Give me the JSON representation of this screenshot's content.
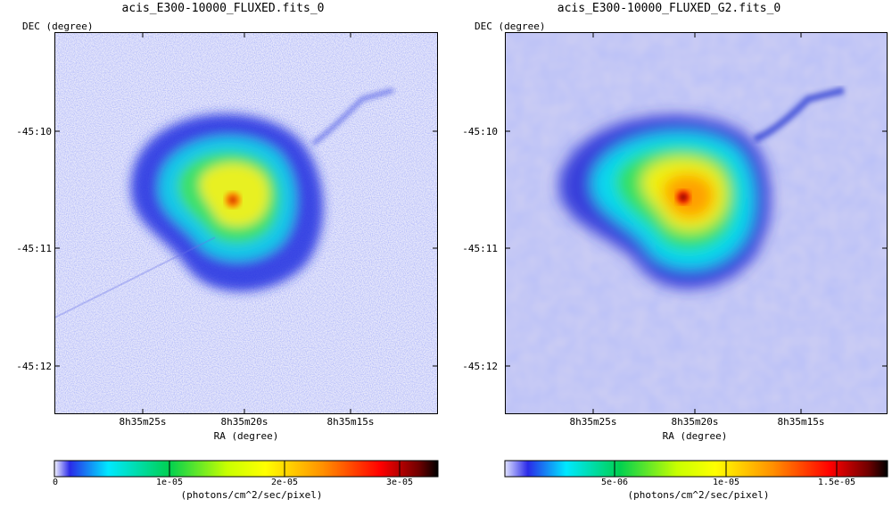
{
  "panels": [
    {
      "title": "acis_E300-10000_FLUXED.fits_0",
      "ylabel": "DEC (degree)",
      "xlabel": "RA (degree)",
      "yticks": [
        "-45:10",
        "-45:11",
        "-45:12"
      ],
      "xticks": [
        "8h35m25s",
        "8h35m20s",
        "8h35m15s"
      ],
      "colorbar": {
        "ticks": [
          "0",
          "1e-05",
          "2e-05",
          "3e-05"
        ],
        "label": "(photons/cm^2/sec/pixel)"
      }
    },
    {
      "title": "acis_E300-10000_FLUXED_G2.fits_0",
      "ylabel": "DEC (degree)",
      "xlabel": "RA (degree)",
      "yticks": [
        "-45:10",
        "-45:11",
        "-45:12"
      ],
      "xticks": [
        "8h35m25s",
        "8h35m20s",
        "8h35m15s"
      ],
      "colorbar": {
        "ticks": [
          "5e-06",
          "1e-05",
          "1.5e-05"
        ],
        "label": "(photons/cm^2/sec/pixel)"
      }
    }
  ]
}
